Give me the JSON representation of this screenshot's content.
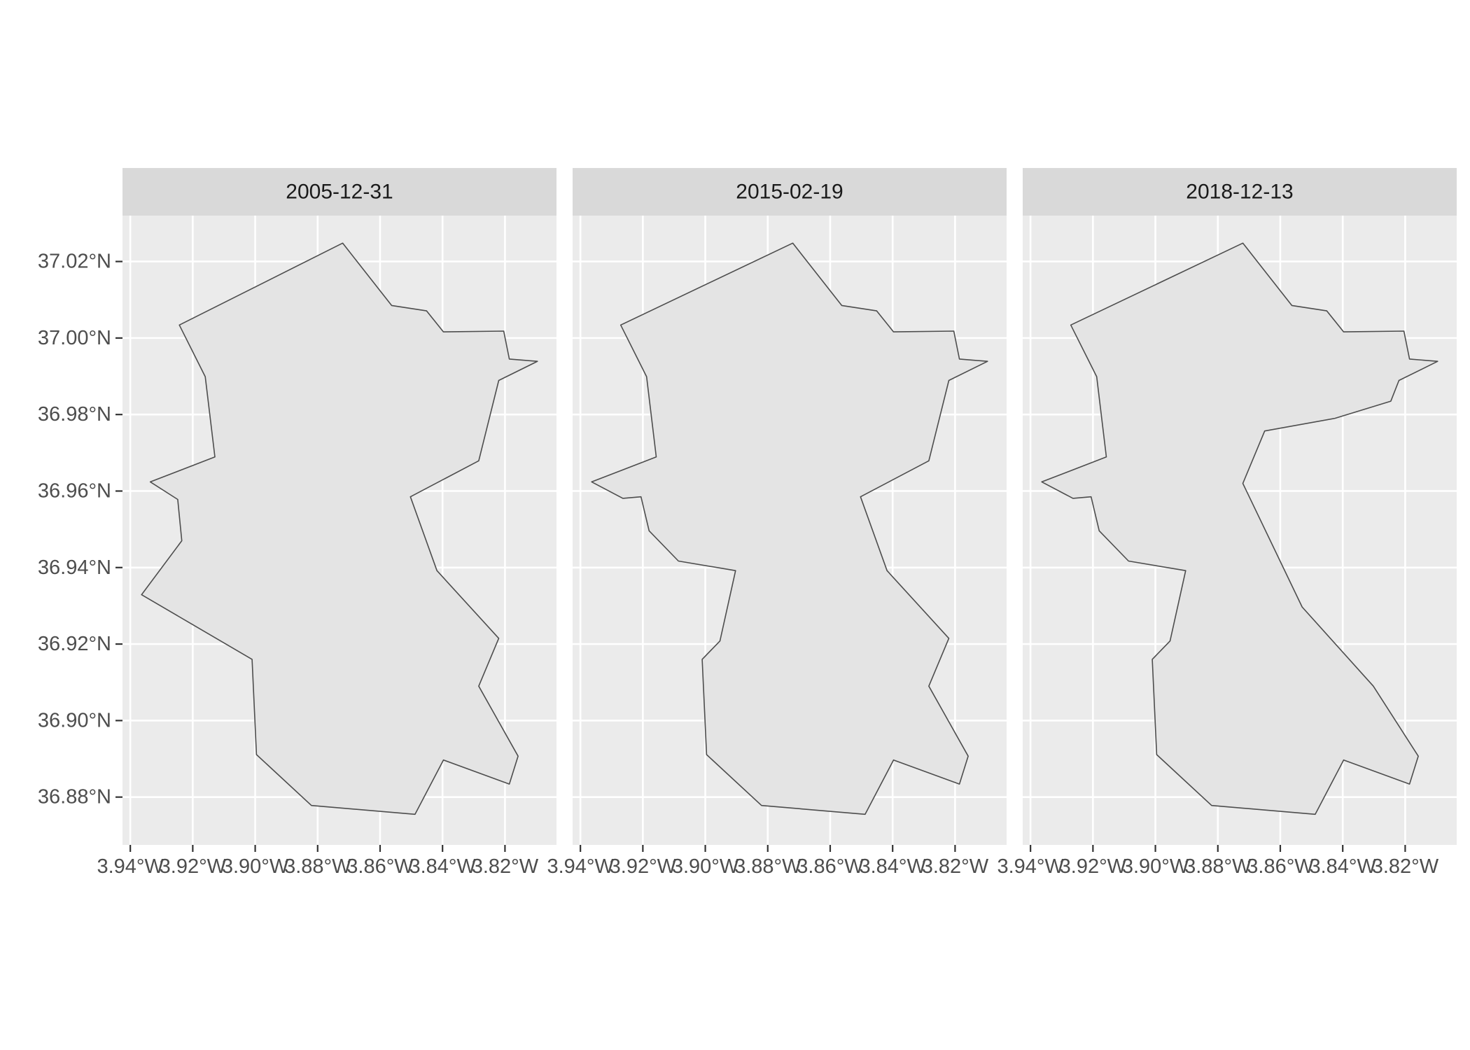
{
  "chart_data": {
    "type": "map",
    "facet_by": "date",
    "panels": [
      {
        "label": "2005-12-31",
        "polygon": [
          [
            -3.872,
            37.0248
          ],
          [
            -3.8563,
            37.0085
          ],
          [
            -3.8451,
            37.0071
          ],
          [
            -3.8397,
            37.0016
          ],
          [
            -3.8204,
            37.0018
          ],
          [
            -3.8186,
            36.9945
          ],
          [
            -3.8096,
            36.9939
          ],
          [
            -3.822,
            36.9889
          ],
          [
            -3.8284,
            36.9679
          ],
          [
            -3.8503,
            36.9585
          ],
          [
            -3.8418,
            36.9392
          ],
          [
            -3.822,
            36.9215
          ],
          [
            -3.8284,
            36.909
          ],
          [
            -3.8158,
            36.8907
          ],
          [
            -3.8186,
            36.8834
          ],
          [
            -3.8397,
            36.8897
          ],
          [
            -3.8488,
            36.8755
          ],
          [
            -3.882,
            36.8778
          ],
          [
            -3.8996,
            36.8911
          ],
          [
            -3.901,
            36.916
          ],
          [
            -3.9364,
            36.9329
          ],
          [
            -3.9235,
            36.947
          ],
          [
            -3.9248,
            36.9578
          ],
          [
            -3.9336,
            36.9624
          ],
          [
            -3.9129,
            36.9689
          ],
          [
            -3.916,
            36.9899
          ],
          [
            -3.9243,
            37.0034
          ],
          [
            -3.872,
            37.0248
          ]
        ]
      },
      {
        "label": "2015-02-19",
        "polygon": [
          [
            -3.872,
            37.0248
          ],
          [
            -3.8563,
            37.0085
          ],
          [
            -3.8451,
            37.0071
          ],
          [
            -3.8397,
            37.0016
          ],
          [
            -3.8204,
            37.0018
          ],
          [
            -3.8186,
            36.9945
          ],
          [
            -3.8096,
            36.9939
          ],
          [
            -3.822,
            36.9889
          ],
          [
            -3.8284,
            36.9679
          ],
          [
            -3.8503,
            36.9585
          ],
          [
            -3.8418,
            36.9392
          ],
          [
            -3.822,
            36.9215
          ],
          [
            -3.8284,
            36.909
          ],
          [
            -3.8158,
            36.8907
          ],
          [
            -3.8186,
            36.8834
          ],
          [
            -3.8397,
            36.8897
          ],
          [
            -3.8488,
            36.8755
          ],
          [
            -3.882,
            36.8778
          ],
          [
            -3.8996,
            36.8911
          ],
          [
            -3.901,
            36.916
          ],
          [
            -3.8953,
            36.9208
          ],
          [
            -3.8903,
            36.9392
          ],
          [
            -3.9086,
            36.9417
          ],
          [
            -3.918,
            36.9496
          ],
          [
            -3.9206,
            36.9585
          ],
          [
            -3.9264,
            36.9581
          ],
          [
            -3.9364,
            36.9624
          ],
          [
            -3.9157,
            36.9689
          ],
          [
            -3.9188,
            36.9899
          ],
          [
            -3.9271,
            37.0034
          ],
          [
            -3.872,
            37.0248
          ]
        ]
      },
      {
        "label": "2018-12-13",
        "polygon": [
          [
            -3.872,
            37.0248
          ],
          [
            -3.8563,
            37.0085
          ],
          [
            -3.8451,
            37.0071
          ],
          [
            -3.8397,
            37.0016
          ],
          [
            -3.8204,
            37.0018
          ],
          [
            -3.8186,
            36.9945
          ],
          [
            -3.8096,
            36.9939
          ],
          [
            -3.822,
            36.9889
          ],
          [
            -3.8246,
            36.9835
          ],
          [
            -3.8425,
            36.979
          ],
          [
            -3.865,
            36.9757
          ],
          [
            -3.872,
            36.962
          ],
          [
            -3.853,
            36.9297
          ],
          [
            -3.8302,
            36.909
          ],
          [
            -3.8158,
            36.8907
          ],
          [
            -3.8186,
            36.8834
          ],
          [
            -3.8397,
            36.8897
          ],
          [
            -3.8488,
            36.8755
          ],
          [
            -3.882,
            36.8778
          ],
          [
            -3.8996,
            36.8911
          ],
          [
            -3.901,
            36.916
          ],
          [
            -3.8953,
            36.9208
          ],
          [
            -3.8903,
            36.9392
          ],
          [
            -3.9086,
            36.9417
          ],
          [
            -3.918,
            36.9496
          ],
          [
            -3.9206,
            36.9585
          ],
          [
            -3.9264,
            36.9581
          ],
          [
            -3.9364,
            36.9624
          ],
          [
            -3.9157,
            36.9689
          ],
          [
            -3.9188,
            36.9899
          ],
          [
            -3.9271,
            37.0034
          ],
          [
            -3.872,
            37.0248
          ]
        ]
      }
    ],
    "x_ticks": [
      {
        "value": -3.94,
        "label": "3.94°W"
      },
      {
        "value": -3.92,
        "label": "3.92°W"
      },
      {
        "value": -3.9,
        "label": "3.90°W"
      },
      {
        "value": -3.88,
        "label": "3.88°W"
      },
      {
        "value": -3.86,
        "label": "3.86°W"
      },
      {
        "value": -3.84,
        "label": "3.84°W"
      },
      {
        "value": -3.82,
        "label": "3.82°W"
      }
    ],
    "y_ticks": [
      {
        "value": 36.88,
        "label": "36.88°N"
      },
      {
        "value": 36.9,
        "label": "36.90°N"
      },
      {
        "value": 36.92,
        "label": "36.92°N"
      },
      {
        "value": 36.94,
        "label": "36.94°N"
      },
      {
        "value": 36.96,
        "label": "36.96°N"
      },
      {
        "value": 36.98,
        "label": "36.98°N"
      },
      {
        "value": 37.0,
        "label": "37.00°N"
      },
      {
        "value": 37.02,
        "label": "37.02°N"
      }
    ],
    "xlim": [
      -3.9425,
      -3.8035
    ],
    "ylim": [
      36.8675,
      37.032
    ],
    "grid": true,
    "colors": {
      "panel_background": "#ebebeb",
      "strip_background": "#d9d9d9",
      "grid_line": "#ffffff",
      "polygon_fill": "#e4e4e4",
      "polygon_stroke": "#4d4d4d",
      "tick_mark": "#333333",
      "tick_label": "#4d4d4d",
      "strip_text": "#1a1a1a"
    }
  }
}
